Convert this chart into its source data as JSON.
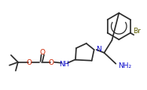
{
  "bg_color": "#ffffff",
  "line_color": "#2a2a2a",
  "line_width": 1.2,
  "N_color": "#1010cc",
  "O_color": "#cc2200",
  "Br_color": "#5a5a00",
  "figsize": [
    1.87,
    1.15
  ],
  "dpi": 100,
  "xlim": [
    0,
    187
  ],
  "ylim": [
    0,
    115
  ]
}
